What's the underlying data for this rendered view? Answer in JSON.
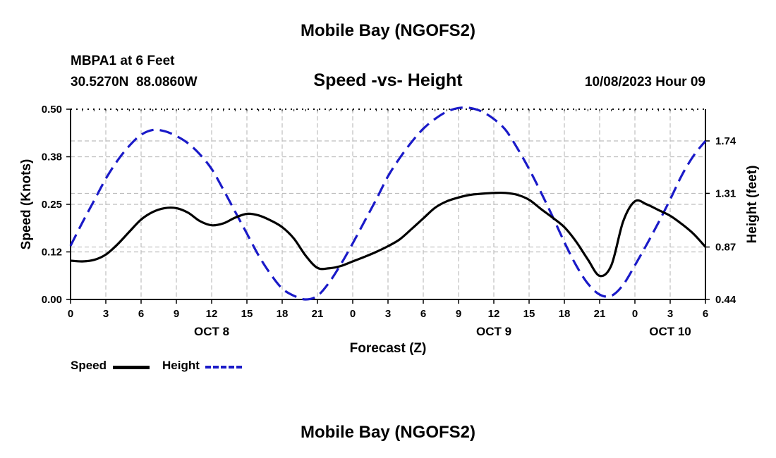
{
  "header": {
    "title": "Mobile Bay (NGOFS2)",
    "station_line": "MBPA1 at 6 Feet",
    "coords_line": "30.5270N  88.0860W",
    "run_time": "10/08/2023 Hour 09",
    "footer_title": "Mobile Bay (NGOFS2)"
  },
  "colors": {
    "speed": "#000000",
    "height": "#1a1ac8",
    "grid": "#bdbdbd"
  },
  "chart_data": {
    "type": "line",
    "title": "Speed -vs- Height",
    "xlabel": "Forecast (Z)",
    "ylabel_left": "Speed (Knots)",
    "ylabel_right": "Height (feet)",
    "x_range_hours": [
      0,
      54
    ],
    "x_tick_hours": [
      0,
      3,
      6,
      9,
      12,
      15,
      18,
      21,
      24,
      27,
      30,
      33,
      36,
      39,
      42,
      45,
      48,
      51,
      54
    ],
    "x_tick_labels": [
      "0",
      "3",
      "6",
      "9",
      "12",
      "15",
      "18",
      "21",
      "0",
      "3",
      "6",
      "9",
      "12",
      "15",
      "18",
      "21",
      "0",
      "3",
      "6"
    ],
    "date_labels": [
      {
        "hour": 12,
        "label": "OCT 8"
      },
      {
        "hour": 36,
        "label": "OCT 9"
      },
      {
        "hour": 51,
        "label": "OCT 10"
      }
    ],
    "ylim_left": [
      0,
      0.5
    ],
    "y_ticks_left": [
      0,
      0.125,
      0.25,
      0.375,
      0.5
    ],
    "y_tick_labels_left": [
      "0.00",
      "0.12",
      "0.25",
      "0.38",
      "0.50"
    ],
    "ylim_right": [
      0.44,
      2.0
    ],
    "y_ticks_right": [
      0.44,
      0.87,
      1.31,
      1.74
    ],
    "y_tick_labels_right": [
      "0.44",
      "0.87",
      "1.31",
      "1.74"
    ],
    "grid": true,
    "series": [
      {
        "name": "Speed",
        "axis": "left",
        "style": "solid",
        "x": [
          0,
          1,
          2,
          3,
          4,
          5,
          6,
          7,
          8,
          9,
          10,
          11,
          12,
          13,
          14,
          15,
          16,
          17,
          18,
          19,
          20,
          21,
          22,
          23,
          24,
          25,
          26,
          27,
          28,
          29,
          30,
          31,
          32,
          33,
          34,
          35,
          36,
          37,
          38,
          39,
          40,
          41,
          42,
          43,
          44,
          45,
          46,
          47,
          48,
          49,
          50,
          51,
          52,
          53,
          54
        ],
        "values": [
          0.102,
          0.1,
          0.104,
          0.118,
          0.145,
          0.178,
          0.21,
          0.23,
          0.24,
          0.24,
          0.228,
          0.206,
          0.195,
          0.2,
          0.215,
          0.225,
          0.221,
          0.208,
          0.19,
          0.16,
          0.115,
          0.083,
          0.082,
          0.088,
          0.1,
          0.112,
          0.125,
          0.14,
          0.158,
          0.185,
          0.213,
          0.241,
          0.258,
          0.268,
          0.275,
          0.278,
          0.28,
          0.28,
          0.275,
          0.262,
          0.238,
          0.215,
          0.19,
          0.152,
          0.105,
          0.062,
          0.09,
          0.205,
          0.258,
          0.25,
          0.235,
          0.22,
          0.198,
          0.172,
          0.138
        ]
      },
      {
        "name": "Height",
        "axis": "right",
        "style": "dashed",
        "x": [
          0,
          1,
          2,
          3,
          4,
          5,
          6,
          7,
          8,
          9,
          10,
          11,
          12,
          13,
          14,
          15,
          16,
          17,
          18,
          19,
          20,
          21,
          22,
          23,
          24,
          25,
          26,
          27,
          28,
          29,
          30,
          31,
          32,
          33,
          34,
          35,
          36,
          37,
          38,
          39,
          40,
          41,
          42,
          43,
          44,
          45,
          46,
          47,
          48,
          49,
          50,
          51,
          52,
          53,
          54
        ],
        "values": [
          0.88,
          1.07,
          1.25,
          1.43,
          1.58,
          1.7,
          1.79,
          1.83,
          1.82,
          1.78,
          1.72,
          1.63,
          1.51,
          1.34,
          1.16,
          0.98,
          0.8,
          0.65,
          0.53,
          0.47,
          0.44,
          0.47,
          0.58,
          0.73,
          0.9,
          1.08,
          1.26,
          1.45,
          1.6,
          1.73,
          1.84,
          1.92,
          1.98,
          2.01,
          2.01,
          1.98,
          1.92,
          1.83,
          1.68,
          1.51,
          1.32,
          1.12,
          0.91,
          0.72,
          0.57,
          0.48,
          0.47,
          0.56,
          0.72,
          0.89,
          1.07,
          1.26,
          1.46,
          1.62,
          1.74
        ]
      }
    ]
  },
  "legend": {
    "speed_label": "Speed",
    "height_label": "Height"
  }
}
